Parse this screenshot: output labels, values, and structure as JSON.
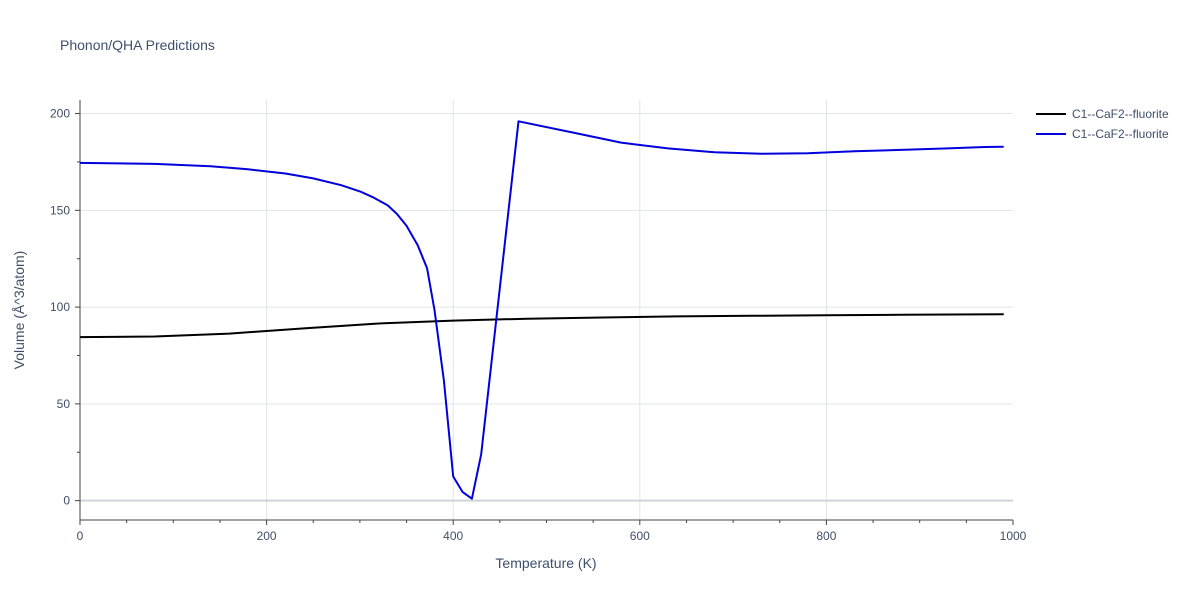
{
  "chart_data": {
    "type": "line",
    "title": "Phonon/QHA Predictions",
    "xlabel": "Temperature (K)",
    "ylabel": "Volume (Å^3/atom)",
    "xlim": [
      0,
      1000
    ],
    "ylim": [
      -10,
      207
    ],
    "x_ticks": [
      0,
      200,
      400,
      600,
      800,
      1000
    ],
    "y_ticks": [
      0,
      50,
      100,
      150,
      200
    ],
    "grid": true,
    "legend_position": "top-right",
    "series": [
      {
        "name": "C1--CaF2--fluorite",
        "color": "#000000",
        "x": [
          0,
          80,
          160,
          240,
          320,
          400,
          480,
          560,
          640,
          720,
          800,
          880,
          990
        ],
        "y": [
          84.5,
          84.8,
          86.3,
          89.0,
          91.5,
          93.0,
          94.0,
          94.6,
          95.2,
          95.5,
          95.8,
          96.0,
          96.3
        ]
      },
      {
        "name": "C1--CaF2--fluorite",
        "color": "#0000dd",
        "x": [
          0,
          80,
          140,
          180,
          220,
          250,
          280,
          300,
          315,
          330,
          340,
          350,
          362,
          372,
          380,
          390,
          400,
          410,
          420,
          430,
          470,
          530,
          580,
          630,
          680,
          730,
          780,
          830,
          880,
          930,
          970,
          990
        ],
        "y": [
          174.5,
          174.0,
          172.8,
          171.2,
          169.0,
          166.5,
          163.0,
          159.8,
          156.5,
          152.5,
          148.0,
          142.0,
          132.0,
          120.0,
          98.5,
          62.0,
          12.5,
          4.5,
          1.0,
          24.0,
          196.0,
          190.0,
          185.0,
          182.0,
          180.0,
          179.2,
          179.5,
          180.5,
          181.2,
          182.0,
          182.7,
          182.8
        ]
      }
    ]
  }
}
